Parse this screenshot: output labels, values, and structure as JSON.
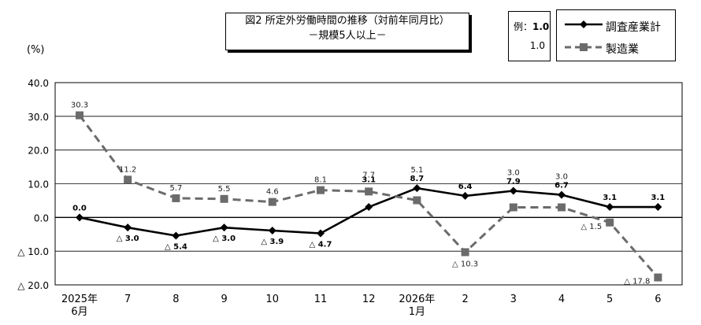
{
  "title": {
    "line1": "図2  所定外労働時間の推移（対前年同月比）",
    "line2": "－規模5人以上－"
  },
  "example_box": {
    "label": "例：",
    "bold_value": "1.0",
    "plain_value": "1.0"
  },
  "colors": {
    "series1": "#000000",
    "series2": "#6b6b6b",
    "grid": "#000000"
  },
  "chart_data": {
    "type": "line",
    "unit_label": "(%)",
    "ylim": [
      -20,
      40
    ],
    "y_ticks": [
      40,
      30,
      20,
      10,
      0,
      -10,
      -20
    ],
    "y_tick_labels": [
      "40.0",
      "30.0",
      "20.0",
      "10.0",
      "0.0",
      "△ 10.0",
      "△ 20.0"
    ],
    "grid": true,
    "legend_position": "top-right",
    "categories": [
      [
        "2025年",
        "6月"
      ],
      [
        "7"
      ],
      [
        "8"
      ],
      [
        "9"
      ],
      [
        "10"
      ],
      [
        "11"
      ],
      [
        "12"
      ],
      [
        "2026年",
        "1月"
      ],
      [
        "2"
      ],
      [
        "3"
      ],
      [
        "4"
      ],
      [
        "5"
      ],
      [
        "6"
      ]
    ],
    "series": [
      {
        "name": "調査産業計",
        "values": [
          0.0,
          -3.0,
          -5.4,
          -3.0,
          -3.9,
          -4.7,
          3.1,
          8.7,
          6.4,
          7.9,
          6.7,
          3.1,
          3.1
        ],
        "labels": [
          "0.0",
          "△ 3.0",
          "△ 5.4",
          "△ 3.0",
          "△ 3.9",
          "△ 4.7",
          "3.1",
          "8.7",
          "6.4",
          "7.9",
          "6.7",
          "3.1",
          "3.1"
        ],
        "label_positions": [
          "above",
          "below",
          "below",
          "below",
          "below",
          "below",
          "above",
          "above",
          "above",
          "above",
          "above",
          "above",
          "above"
        ]
      },
      {
        "name": "製造業",
        "values": [
          30.3,
          11.2,
          5.7,
          5.5,
          4.6,
          8.1,
          7.7,
          5.1,
          -10.3,
          3.0,
          3.0,
          -1.5,
          -17.8
        ],
        "labels": [
          "30.3",
          "11.2",
          "5.7",
          "5.5",
          "4.6",
          "8.1",
          "7.7",
          "5.1",
          "△ 10.3",
          "3.0",
          "3.0",
          "△ 1.5",
          "△ 17.8"
        ],
        "label_positions": [
          "above",
          "above",
          "above",
          "above",
          "above",
          "above",
          "above",
          "above",
          "below",
          "above",
          "above",
          "left",
          "left"
        ]
      }
    ]
  }
}
